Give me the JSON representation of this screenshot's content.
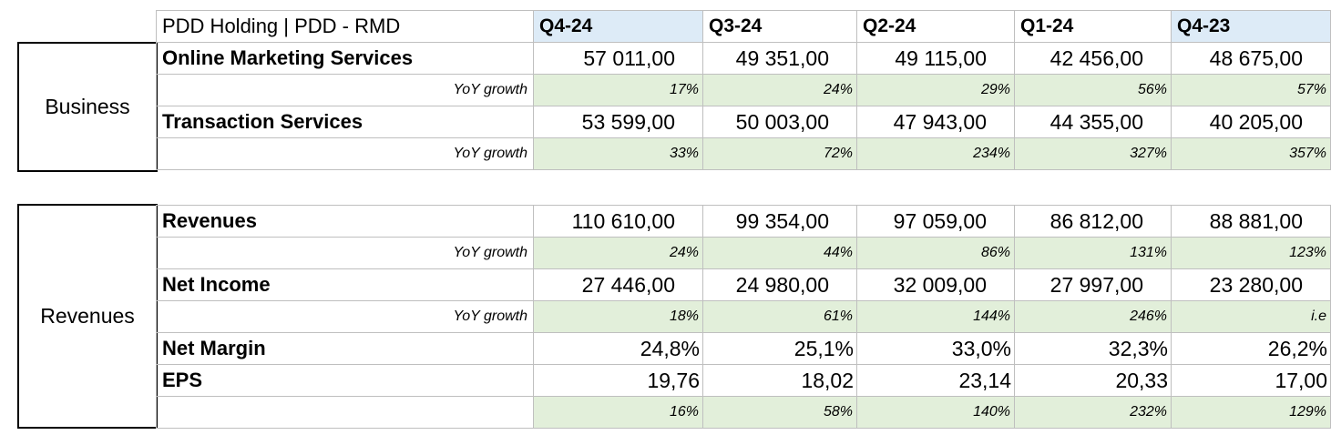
{
  "header": {
    "title": "PDD Holding | PDD - RMD",
    "quarters": [
      "Q4-24",
      "Q3-24",
      "Q2-24",
      "Q1-24",
      "Q4-23"
    ]
  },
  "groups": {
    "business": "Business",
    "revenues": "Revenues"
  },
  "business_rows": [
    {
      "label": "Online Marketing Services",
      "values": [
        "57 011,00",
        "49 351,00",
        "49 115,00",
        "42 456,00",
        "48 675,00"
      ]
    },
    {
      "label": "YoY growth",
      "values": [
        "17%",
        "24%",
        "29%",
        "56%",
        "57%"
      ]
    },
    {
      "label": "Transaction Services",
      "values": [
        "53 599,00",
        "50 003,00",
        "47 943,00",
        "44 355,00",
        "40 205,00"
      ]
    },
    {
      "label": "YoY growth",
      "values": [
        "33%",
        "72%",
        "234%",
        "327%",
        "357%"
      ]
    }
  ],
  "revenue_rows": [
    {
      "label": "Revenues",
      "values": [
        "110 610,00",
        "99 354,00",
        "97 059,00",
        "86 812,00",
        "88 881,00"
      ]
    },
    {
      "label": "YoY growth",
      "values": [
        "24%",
        "44%",
        "86%",
        "131%",
        "123%"
      ]
    },
    {
      "label": "Net Income",
      "values": [
        "27 446,00",
        "24 980,00",
        "32 009,00",
        "27 997,00",
        "23 280,00"
      ]
    },
    {
      "label": "YoY growth",
      "values": [
        "18%",
        "61%",
        "144%",
        "246%",
        "i.e"
      ]
    },
    {
      "label": "Net Margin",
      "values": [
        "24,8%",
        "25,1%",
        "33,0%",
        "32,3%",
        "26,2%"
      ]
    },
    {
      "label": "EPS",
      "values": [
        "19,76",
        "18,02",
        "23,14",
        "20,33",
        "17,00"
      ]
    },
    {
      "label": "",
      "values": [
        "16%",
        "58%",
        "140%",
        "232%",
        "129%"
      ]
    }
  ],
  "colors": {
    "growth_fill": "#e2efda",
    "header_highlight": "#ddebf7",
    "grid": "#bfbfbf"
  }
}
